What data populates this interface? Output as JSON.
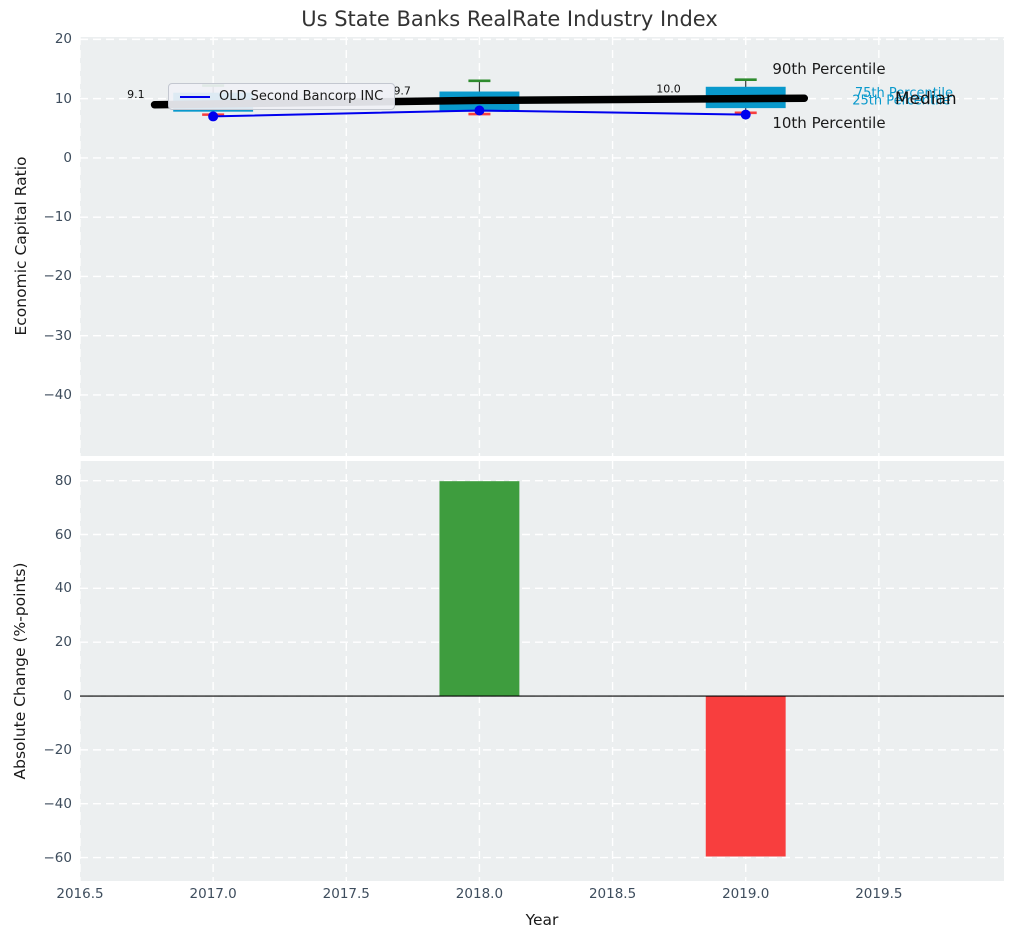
{
  "figure": {
    "title": "Us State Banks RealRate Industry Index"
  },
  "colors": {
    "plot_bg": "#eceff0",
    "grid": "#ffffff",
    "box_fill": "#0999cc",
    "p90_cap": "#2e8b2e",
    "p10_cap": "#f83e3e",
    "median": "#000000",
    "company": "#0000ee",
    "bar_up": "#3e9d3e",
    "bar_down": "#f83e3e",
    "tick": "#3e4d5d",
    "label": "#1a1a1a",
    "annotation": "#111111",
    "title": "#333333"
  },
  "chart_data": [
    {
      "type": "boxplot-line",
      "title": "Us State Banks RealRate Industry Index",
      "xlabel": "",
      "ylabel": "Economic Capital Ratio",
      "xlim": [
        2016.5,
        2019.97
      ],
      "ylim": [
        -50.3,
        20.4
      ],
      "grid": true,
      "legend_loc": "upper left",
      "years": [
        2017,
        2018,
        2019
      ],
      "box_width_years": 0.3,
      "median_line_extend_years": 0.22,
      "boxes": [
        {
          "year": 2017,
          "p10": 7.3,
          "q1": 7.8,
          "median": 9.1,
          "q3": 11.0,
          "p90": 12.2
        },
        {
          "year": 2018,
          "p10": 7.4,
          "q1": 7.8,
          "median": 9.7,
          "q3": 11.2,
          "p90": 13.0
        },
        {
          "year": 2019,
          "p10": 7.6,
          "q1": 8.4,
          "median": 10.0,
          "q3": 12.0,
          "p90": 13.2
        }
      ],
      "series": [
        {
          "name": "OLD Second Bancorp INC",
          "values": [
            7.0,
            8.0,
            7.3
          ],
          "color": "#0000ee"
        }
      ],
      "median_annotations": [
        {
          "text": "9.1",
          "x": 2016.71,
          "y": 10.6
        },
        {
          "text": "9.7",
          "x": 2017.71,
          "y": 11.2
        },
        {
          "text": "10.0",
          "x": 2018.71,
          "y": 11.5
        }
      ],
      "percentile_labels": [
        {
          "text": "90th Percentile",
          "x": 2019.1,
          "y": 14.9,
          "color": "#1a1a1a",
          "size": 15
        },
        {
          "text": "10th Percentile",
          "x": 2019.1,
          "y": 5.8,
          "color": "#1a1a1a",
          "size": 15
        },
        {
          "text": "75th Percentile",
          "x": 2019.41,
          "y": 10.9,
          "color": "#0999cc",
          "size": 13
        },
        {
          "text": "25th Percentile",
          "x": 2019.4,
          "y": 9.6,
          "color": "#0999cc",
          "size": 13
        },
        {
          "text": "Median",
          "x": 2019.56,
          "y": 9.9,
          "color": "#111111",
          "size": 17
        }
      ],
      "yticks": [
        {
          "v": 20,
          "label": "20"
        },
        {
          "v": 10,
          "label": "10"
        },
        {
          "v": 0,
          "label": "0"
        },
        {
          "v": -10,
          "label": "−10"
        },
        {
          "v": -20,
          "label": "−20"
        },
        {
          "v": -30,
          "label": "−30"
        },
        {
          "v": -40,
          "label": "−40"
        }
      ]
    },
    {
      "type": "bar",
      "xlabel": "Year",
      "ylabel": "Absolute Change (%-points)",
      "xlim": [
        2016.5,
        2019.97
      ],
      "ylim": [
        -68.7,
        87.3
      ],
      "grid": true,
      "bar_width_years": 0.3,
      "bars": [
        {
          "year": 2018,
          "value": 79.8,
          "color": "#3e9d3e"
        },
        {
          "year": 2019,
          "value": -59.6,
          "color": "#f83e3e"
        }
      ],
      "xticks": [
        {
          "v": 2016.5,
          "label": "2016.5"
        },
        {
          "v": 2017.0,
          "label": "2017.0"
        },
        {
          "v": 2017.5,
          "label": "2017.5"
        },
        {
          "v": 2018.0,
          "label": "2018.0"
        },
        {
          "v": 2018.5,
          "label": "2018.5"
        },
        {
          "v": 2019.0,
          "label": "2019.0"
        },
        {
          "v": 2019.5,
          "label": "2019.5"
        }
      ],
      "yticks": [
        {
          "v": 80,
          "label": "80"
        },
        {
          "v": 60,
          "label": "60"
        },
        {
          "v": 40,
          "label": "40"
        },
        {
          "v": 20,
          "label": "20"
        },
        {
          "v": 0,
          "label": "0"
        },
        {
          "v": -20,
          "label": "−20"
        },
        {
          "v": -40,
          "label": "−40"
        },
        {
          "v": -60,
          "label": "−60"
        }
      ]
    }
  ]
}
